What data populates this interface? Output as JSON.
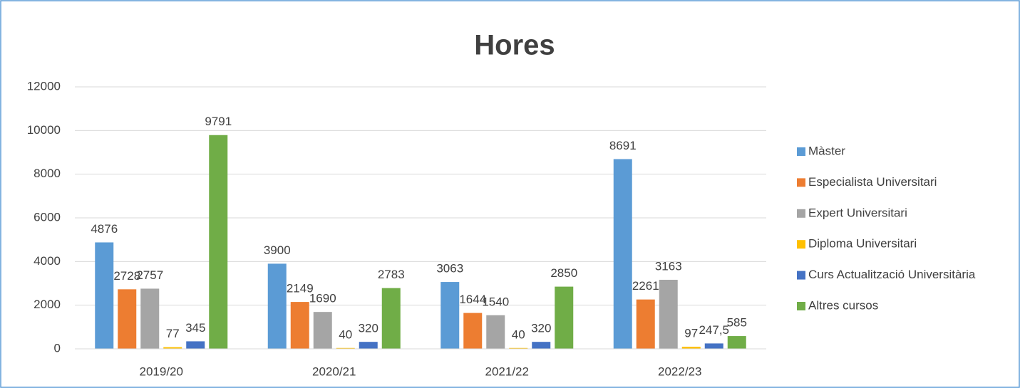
{
  "chart_data": {
    "type": "bar",
    "title": "Hores",
    "categories": [
      "2019/20",
      "2020/21",
      "2021/22",
      "2022/23"
    ],
    "series": [
      {
        "name": "Màster",
        "color": "#5b9bd5",
        "values": [
          4876,
          3900,
          3063,
          8691
        ]
      },
      {
        "name": "Especialista Universitari",
        "color": "#ed7d31",
        "values": [
          2728,
          2149,
          1644,
          2261
        ]
      },
      {
        "name": "Expert Universitari",
        "color": "#a5a5a5",
        "values": [
          2757,
          1690,
          1540,
          3163
        ]
      },
      {
        "name": "Diploma Universitari",
        "color": "#ffc000",
        "values": [
          77,
          40,
          40,
          97
        ]
      },
      {
        "name": "Curs Actualització Universitària",
        "color": "#4472c4",
        "values": [
          345,
          320,
          320,
          247.5
        ],
        "value_labels": [
          "345",
          "320",
          "320",
          "247,5"
        ]
      },
      {
        "name": "Altres cursos",
        "color": "#70ad47",
        "values": [
          9791,
          2783,
          2850,
          585
        ]
      }
    ],
    "ylim": [
      0,
      12000
    ],
    "yticks": [
      0,
      2000,
      4000,
      6000,
      8000,
      10000,
      12000
    ],
    "grid": true,
    "legend": "right"
  }
}
